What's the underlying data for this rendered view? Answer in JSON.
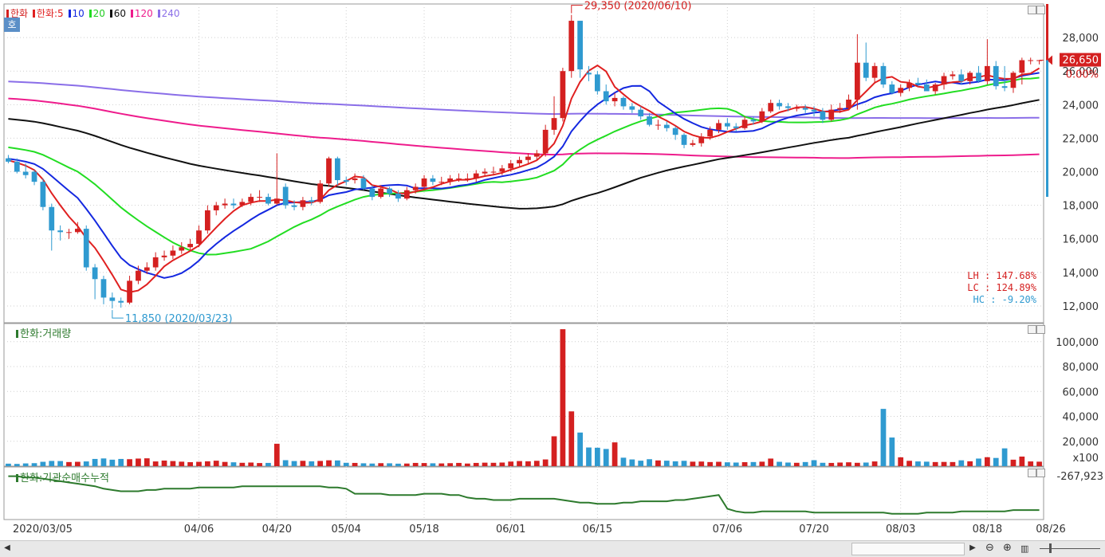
{
  "legend": {
    "stock": "한화",
    "ma_label_prefix": "한화:",
    "ma": [
      {
        "label": "5",
        "color": "#e02020"
      },
      {
        "label": "10",
        "color": "#1428e0"
      },
      {
        "label": "20",
        "color": "#22dd22"
      },
      {
        "label": "60",
        "color": "#111111"
      },
      {
        "label": "120",
        "color": "#ee1c8c"
      },
      {
        "label": "240",
        "color": "#8a6ee8"
      }
    ],
    "stock_color": "#d42020"
  },
  "badge": "호",
  "annotations": {
    "high": "29,350 (2020/06/10)",
    "low": "11,850 (2020/03/23)"
  },
  "price_tag": {
    "value": "26,650",
    "change": "0.00%"
  },
  "stats": {
    "lh": "LH :  147.68%",
    "lc": "LC :  124.89%",
    "hc": "HC :   -9.20%"
  },
  "volume_pane": {
    "title": "한화:거래량",
    "unit": "x100",
    "color": "#2d7a2d"
  },
  "inst_pane": {
    "title": "한화:기관순매수누적",
    "value": "-267,923",
    "color": "#2d7a2d"
  },
  "x_labels": [
    "2020/03/05",
    "04/06",
    "04/20",
    "05/04",
    "05/18",
    "06/01",
    "06/15",
    "07/06",
    "07/20",
    "08/03",
    "08/18",
    "08/26"
  ],
  "chart_data": [
    {
      "type": "candlestick",
      "title": "한화",
      "y_ticks": [
        12000,
        14000,
        16000,
        18000,
        20000,
        22000,
        24000,
        26000,
        28000
      ],
      "y_tick_labels": [
        "12,000",
        "14,000",
        "16,000",
        "18,000",
        "20,000",
        "22,000",
        "24,000",
        "26,000",
        "28,000"
      ],
      "ylim": [
        11000,
        30000
      ],
      "x": [
        "03/05",
        "03/06",
        "03/09",
        "03/10",
        "03/11",
        "03/12",
        "03/13",
        "03/16",
        "03/17",
        "03/18",
        "03/19",
        "03/20",
        "03/23",
        "03/24",
        "03/25",
        "03/26",
        "03/27",
        "03/30",
        "03/31",
        "04/01",
        "04/02",
        "04/03",
        "04/06",
        "04/07",
        "04/08",
        "04/09",
        "04/10",
        "04/13",
        "04/14",
        "04/16",
        "04/17",
        "04/20",
        "04/21",
        "04/22",
        "04/23",
        "04/24",
        "04/27",
        "04/28",
        "04/29",
        "05/04",
        "05/06",
        "05/07",
        "05/08",
        "05/11",
        "05/12",
        "05/13",
        "05/14",
        "05/15",
        "05/18",
        "05/19",
        "05/20",
        "05/21",
        "05/22",
        "05/25",
        "05/26",
        "05/27",
        "05/28",
        "05/29",
        "06/01",
        "06/02",
        "06/03",
        "06/04",
        "06/05",
        "06/08",
        "06/09",
        "06/10",
        "06/11",
        "06/12",
        "06/15",
        "06/16",
        "06/17",
        "06/18",
        "06/19",
        "06/22",
        "06/23",
        "06/24",
        "06/25",
        "06/26",
        "06/29",
        "06/30",
        "07/01",
        "07/02",
        "07/03",
        "07/06",
        "07/07",
        "07/08",
        "07/09",
        "07/10",
        "07/13",
        "07/14",
        "07/15",
        "07/16",
        "07/17",
        "07/20",
        "07/21",
        "07/22",
        "07/23",
        "07/24",
        "07/27",
        "07/28",
        "07/29",
        "07/30",
        "07/31",
        "08/03",
        "08/04",
        "08/05",
        "08/06",
        "08/07",
        "08/10",
        "08/11",
        "08/12",
        "08/13",
        "08/14",
        "08/18",
        "08/19",
        "08/20",
        "08/21",
        "08/24",
        "08/25",
        "08/26"
      ],
      "open": [
        20800,
        20600,
        20000,
        20000,
        19400,
        17900,
        16500,
        16400,
        16400,
        16600,
        14300,
        13600,
        12500,
        12300,
        12200,
        13500,
        14100,
        14300,
        14900,
        15000,
        15300,
        15500,
        15700,
        16500,
        17700,
        18000,
        18100,
        18000,
        18200,
        18500,
        18500,
        18100,
        19100,
        18000,
        17900,
        18300,
        18200,
        19300,
        20800,
        19500,
        19500,
        19600,
        19000,
        18500,
        19000,
        18700,
        18400,
        18900,
        19100,
        19600,
        19400,
        19400,
        19600,
        19600,
        19600,
        19900,
        20000,
        20000,
        20200,
        20500,
        20700,
        20900,
        21100,
        22500,
        23200,
        26000,
        29000,
        25900,
        25800,
        24800,
        24200,
        24400,
        23900,
        23700,
        23300,
        22800,
        22800,
        22600,
        22200,
        21600,
        21700,
        22100,
        22500,
        22900,
        22700,
        22600,
        23100,
        23000,
        23600,
        24100,
        23900,
        23800,
        23800,
        23700,
        23600,
        23100,
        23700,
        23800,
        24300,
        26500,
        25600,
        26300,
        25200,
        24700,
        25000,
        25300,
        25200,
        24800,
        25200,
        25700,
        25800,
        25400,
        25900,
        25400,
        26300,
        25100,
        25000,
        25900,
        26650,
        26650
      ],
      "close": [
        20600,
        20000,
        19800,
        19400,
        17900,
        16500,
        16400,
        16400,
        16600,
        14300,
        13600,
        12500,
        12300,
        12200,
        13500,
        14100,
        14300,
        14900,
        15000,
        15300,
        15500,
        15700,
        16500,
        17700,
        18000,
        18100,
        18000,
        18200,
        18500,
        18500,
        18100,
        18400,
        18000,
        17900,
        18300,
        18200,
        19300,
        20800,
        19500,
        19400,
        19600,
        19000,
        18500,
        19000,
        18700,
        18400,
        18900,
        19100,
        19600,
        19400,
        19400,
        19600,
        19600,
        19600,
        19900,
        20000,
        20000,
        20200,
        20500,
        20700,
        20900,
        21100,
        22500,
        23200,
        26000,
        29000,
        26100,
        25800,
        24800,
        24200,
        24400,
        23900,
        23700,
        23300,
        22800,
        22800,
        22600,
        22200,
        21600,
        21700,
        22100,
        22500,
        22900,
        22700,
        22600,
        23100,
        23000,
        23600,
        24100,
        23900,
        23800,
        23800,
        23700,
        23600,
        23100,
        23700,
        23800,
        24300,
        26500,
        25600,
        26300,
        25200,
        24700,
        25000,
        25300,
        25200,
        24800,
        25200,
        25700,
        25800,
        25400,
        25900,
        25400,
        26300,
        25100,
        25000,
        25900,
        26650,
        26650,
        26650
      ],
      "high": [
        21000,
        20800,
        20500,
        20100,
        19600,
        18100,
        16800,
        16600,
        17000,
        16800,
        14500,
        13800,
        12800,
        12500,
        13800,
        14400,
        14600,
        15200,
        15300,
        15600,
        15800,
        16000,
        16800,
        18000,
        18200,
        18400,
        18400,
        18400,
        18700,
        18900,
        18700,
        21100,
        19300,
        18300,
        18500,
        18500,
        19500,
        20900,
        20900,
        19700,
        19900,
        19800,
        19200,
        19200,
        19100,
        18900,
        19100,
        19300,
        19800,
        19800,
        19700,
        19800,
        19900,
        19900,
        20100,
        20200,
        20300,
        20400,
        20700,
        20900,
        21100,
        21300,
        22800,
        24500,
        26200,
        29350,
        29000,
        26300,
        26000,
        25200,
        24700,
        24500,
        24100,
        23900,
        23500,
        23100,
        23000,
        22700,
        22300,
        21900,
        22300,
        22700,
        23100,
        23200,
        22900,
        23300,
        23300,
        23800,
        24300,
        24300,
        24100,
        24000,
        24000,
        23900,
        23800,
        24000,
        24100,
        24600,
        28200,
        27700,
        26500,
        26500,
        25400,
        25200,
        25500,
        25600,
        25500,
        25300,
        25900,
        26000,
        26100,
        26000,
        26300,
        27900,
        26600,
        26300,
        26000,
        26800,
        26800,
        26650
      ],
      "low": [
        20500,
        19900,
        19600,
        19200,
        17700,
        15300,
        15900,
        16000,
        16300,
        14100,
        12400,
        12100,
        11850,
        11900,
        12100,
        13300,
        13900,
        14100,
        14700,
        14800,
        15100,
        15300,
        15500,
        16300,
        17400,
        17800,
        17800,
        17900,
        18000,
        18200,
        18000,
        18000,
        17800,
        17700,
        17700,
        18000,
        18100,
        19100,
        19200,
        19200,
        19300,
        18900,
        18300,
        18400,
        18500,
        18200,
        18300,
        18700,
        18900,
        19200,
        19200,
        19200,
        19400,
        19400,
        19400,
        19700,
        19800,
        19800,
        20000,
        20300,
        20500,
        20700,
        20900,
        22200,
        23000,
        25600,
        25600,
        25400,
        24600,
        24000,
        23900,
        23700,
        23500,
        23100,
        22700,
        22500,
        22400,
        21900,
        21400,
        21500,
        21500,
        21900,
        22300,
        22500,
        22400,
        22500,
        22800,
        22900,
        23500,
        23700,
        23600,
        23600,
        23500,
        23300,
        22900,
        23000,
        23500,
        23700,
        23700,
        25400,
        25300,
        25000,
        24600,
        24500,
        24800,
        25100,
        24900,
        24600,
        24900,
        25500,
        25200,
        25200,
        25300,
        25200,
        24900,
        24800,
        24700,
        25200,
        26400,
        26400
      ]
    },
    {
      "type": "bar",
      "title": "한화:거래량",
      "unit": "x100",
      "y_ticks": [
        20000,
        40000,
        60000,
        80000,
        100000
      ],
      "y_tick_labels": [
        "20,000",
        "40,000",
        "60,000",
        "80,000",
        "100,000"
      ],
      "ylim": [
        0,
        112000
      ],
      "values": [
        2000,
        1800,
        2200,
        2400,
        3500,
        4200,
        4100,
        3300,
        3500,
        3800,
        5800,
        6200,
        5200,
        5800,
        5600,
        6100,
        6300,
        3800,
        4500,
        4100,
        3600,
        3200,
        3500,
        3900,
        4400,
        3400,
        3100,
        2700,
        2900,
        2500,
        2600,
        18000,
        4800,
        4100,
        4300,
        3900,
        4200,
        4700,
        4600,
        2700,
        2600,
        2300,
        2100,
        2400,
        2300,
        2000,
        2100,
        2600,
        2500,
        2300,
        2200,
        2400,
        2600,
        2100,
        2600,
        2800,
        2700,
        2900,
        3700,
        4100,
        3900,
        4300,
        5400,
        24000,
        110000,
        44000,
        27000,
        15000,
        14800,
        13800,
        19100,
        6800,
        5400,
        4400,
        5600,
        4600,
        4400,
        3900,
        4300,
        3600,
        3700,
        3300,
        3500,
        3100,
        2900,
        3200,
        3300,
        3600,
        6100,
        3500,
        2900,
        2700,
        3300,
        4800,
        2700,
        2600,
        2900,
        3100,
        2700,
        2900,
        3800,
        46000,
        23000,
        7100,
        4300,
        3800,
        3600,
        3300,
        3400,
        3300,
        4700,
        3900,
        6100,
        7200,
        6600,
        14300,
        5200,
        7700,
        3800,
        3600,
        6600
      ],
      "colors_up_down": [
        "#d42020",
        "#2f9ad0"
      ]
    },
    {
      "type": "line",
      "title": "한화:기관순매수누적",
      "last_value": -267923,
      "values": [
        100,
        100,
        99,
        99,
        98,
        97,
        96,
        95,
        94,
        93,
        92,
        90,
        89,
        88,
        88,
        88,
        89,
        89,
        90,
        90,
        90,
        90,
        91,
        91,
        91,
        91,
        91,
        92,
        92,
        92,
        92,
        92,
        92,
        92,
        92,
        92,
        92,
        91,
        91,
        90,
        86,
        86,
        86,
        86,
        85,
        85,
        85,
        85,
        86,
        86,
        86,
        85,
        85,
        83,
        82,
        82,
        81,
        81,
        81,
        82,
        82,
        82,
        82,
        82,
        81,
        80,
        79,
        79,
        78,
        78,
        78,
        79,
        79,
        80,
        80,
        80,
        80,
        81,
        81,
        82,
        83,
        84,
        85,
        74,
        72,
        71,
        71,
        72,
        72,
        72,
        72,
        72,
        72,
        71,
        71,
        71,
        71,
        71,
        71,
        71,
        71,
        71,
        70,
        70,
        70,
        70,
        71,
        71,
        71,
        71,
        72,
        72,
        72,
        72,
        72,
        72,
        73,
        73,
        73,
        73
      ]
    }
  ]
}
